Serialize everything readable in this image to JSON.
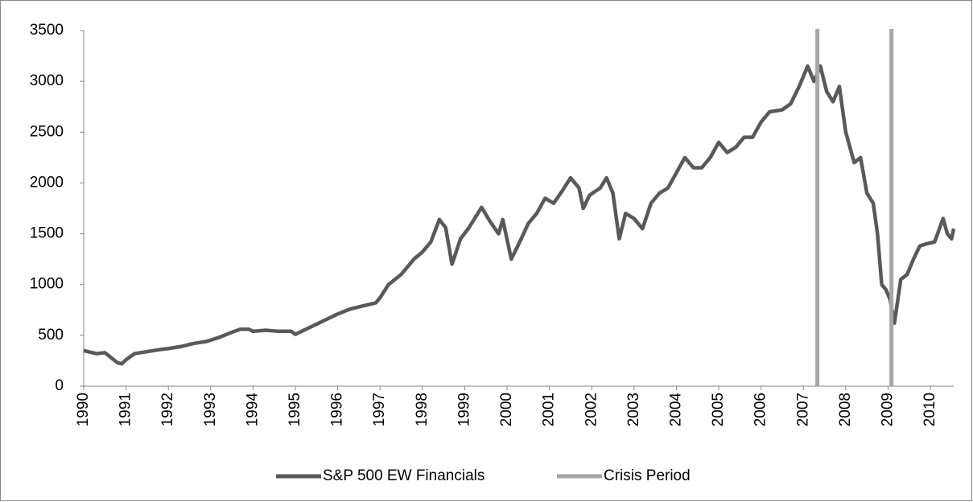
{
  "chart_data": {
    "type": "line",
    "xlim": [
      1990,
      2010.55
    ],
    "ylim": [
      0,
      3500
    ],
    "xticks": [
      1990,
      1991,
      1992,
      1993,
      1994,
      1995,
      1996,
      1997,
      1998,
      1999,
      2000,
      2001,
      2002,
      2003,
      2004,
      2005,
      2006,
      2007,
      2008,
      2009,
      2010
    ],
    "yticks": [
      0,
      500,
      1000,
      1500,
      2000,
      2500,
      3000,
      3500
    ],
    "grid": false,
    "legend": "bottom",
    "series": [
      {
        "name": "S&P 500 EW Financials",
        "color": "#595959",
        "x": [
          1990.0,
          1990.3,
          1990.5,
          1990.8,
          1990.9,
          1991.0,
          1991.2,
          1991.5,
          1991.8,
          1992.0,
          1992.3,
          1992.6,
          1992.9,
          1993.2,
          1993.5,
          1993.7,
          1993.9,
          1994.0,
          1994.3,
          1994.6,
          1994.9,
          1995.0,
          1995.2,
          1995.5,
          1995.8,
          1996.0,
          1996.3,
          1996.6,
          1996.9,
          1997.0,
          1997.2,
          1997.5,
          1997.8,
          1998.0,
          1998.2,
          1998.4,
          1998.55,
          1998.7,
          1998.9,
          1999.1,
          1999.4,
          1999.6,
          1999.8,
          1999.9,
          2000.1,
          2000.3,
          2000.5,
          2000.7,
          2000.9,
          2001.1,
          2001.3,
          2001.5,
          2001.7,
          2001.8,
          2001.95,
          2002.2,
          2002.35,
          2002.5,
          2002.65,
          2002.8,
          2003.0,
          2003.2,
          2003.4,
          2003.6,
          2003.8,
          2004.0,
          2004.2,
          2004.4,
          2004.6,
          2004.8,
          2005.0,
          2005.2,
          2005.4,
          2005.6,
          2005.8,
          2006.0,
          2006.2,
          2006.5,
          2006.7,
          2006.9,
          2007.1,
          2007.25,
          2007.4,
          2007.55,
          2007.7,
          2007.85,
          2008.0,
          2008.2,
          2008.35,
          2008.5,
          2008.65,
          2008.75,
          2008.85,
          2008.95,
          2009.05,
          2009.15,
          2009.3,
          2009.45,
          2009.6,
          2009.75,
          2009.9,
          2010.1,
          2010.3,
          2010.4,
          2010.5,
          2010.55
        ],
        "values": [
          350,
          320,
          330,
          230,
          220,
          260,
          320,
          340,
          360,
          370,
          390,
          420,
          440,
          480,
          530,
          560,
          560,
          540,
          550,
          540,
          540,
          510,
          550,
          610,
          670,
          710,
          760,
          790,
          820,
          870,
          1000,
          1100,
          1250,
          1320,
          1420,
          1640,
          1560,
          1200,
          1450,
          1560,
          1760,
          1620,
          1500,
          1640,
          1250,
          1420,
          1600,
          1700,
          1850,
          1800,
          1920,
          2050,
          1950,
          1750,
          1880,
          1950,
          2050,
          1900,
          1450,
          1700,
          1650,
          1550,
          1800,
          1900,
          1950,
          2100,
          2250,
          2150,
          2150,
          2250,
          2400,
          2300,
          2350,
          2450,
          2450,
          2600,
          2700,
          2720,
          2780,
          2950,
          3150,
          3000,
          3150,
          2900,
          2800,
          2950,
          2500,
          2200,
          2250,
          1900,
          1800,
          1500,
          1000,
          950,
          850,
          620,
          1050,
          1100,
          1250,
          1380,
          1400,
          1420,
          1650,
          1500,
          1450,
          1550
        ]
      },
      {
        "name": "Crisis Period",
        "color": "#a6a6a6",
        "x": [
          2007.33,
          2009.08
        ]
      }
    ]
  }
}
